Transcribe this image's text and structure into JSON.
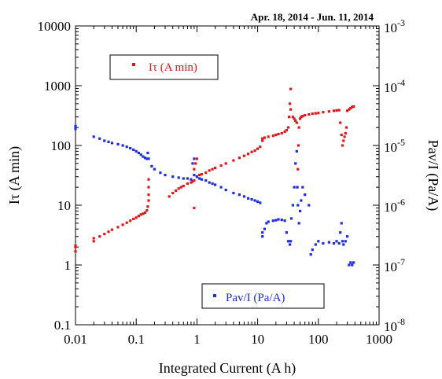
{
  "chart_data": {
    "type": "scatter",
    "title": "Apr. 18, 2014 - Jun. 11, 2014",
    "xlabel": "Integrated Current (A h)",
    "ylabel_left": "Iτ (A min)",
    "ylabel_right": "Pav/I (Pa/A)",
    "x_scale": "log",
    "y_left_scale": "log",
    "y_right_scale": "log",
    "xlim": [
      0.01,
      1000
    ],
    "ylim_left": [
      0.1,
      10000
    ],
    "ylim_right": [
      1e-08,
      0.001
    ],
    "x_ticks": [
      {
        "value": 0.01,
        "label": "0.01"
      },
      {
        "value": 0.1,
        "label": "0.1"
      },
      {
        "value": 1,
        "label": "1"
      },
      {
        "value": 10,
        "label": "10"
      },
      {
        "value": 100,
        "label": "100"
      },
      {
        "value": 1000,
        "label": "1000"
      }
    ],
    "y_left_ticks": [
      {
        "value": 0.1,
        "label": "0.1"
      },
      {
        "value": 1,
        "label": "1"
      },
      {
        "value": 10,
        "label": "10"
      },
      {
        "value": 100,
        "label": "100"
      },
      {
        "value": 1000,
        "label": "1000"
      },
      {
        "value": 10000,
        "label": "10000"
      }
    ],
    "y_right_ticks": [
      {
        "value": 1e-08,
        "base": "10",
        "exp": "-8"
      },
      {
        "value": 1e-07,
        "base": "10",
        "exp": "-7"
      },
      {
        "value": 1e-06,
        "base": "10",
        "exp": "-6"
      },
      {
        "value": 1e-05,
        "base": "10",
        "exp": "-5"
      },
      {
        "value": 0.0001,
        "base": "10",
        "exp": "-4"
      },
      {
        "value": 0.001,
        "base": "10",
        "exp": "-3"
      }
    ],
    "legend": [
      {
        "label": "Iτ (A min)",
        "color": "#e8141c",
        "placement": "upper-left"
      },
      {
        "label": "Pav/I (Pa/A)",
        "color": "#1c2ce8",
        "placement": "lower-middle"
      }
    ],
    "series": [
      {
        "name": "Iτ (A min)",
        "axis": "left",
        "color": "#e8141c",
        "points": [
          [
            0.01,
            1.7
          ],
          [
            0.01,
            2.0
          ],
          [
            0.01,
            2.1
          ],
          [
            0.02,
            2.5
          ],
          [
            0.02,
            2.8
          ],
          [
            0.025,
            3.0
          ],
          [
            0.03,
            3.3
          ],
          [
            0.035,
            3.6
          ],
          [
            0.04,
            3.9
          ],
          [
            0.05,
            4.3
          ],
          [
            0.06,
            4.7
          ],
          [
            0.07,
            5.1
          ],
          [
            0.08,
            5.5
          ],
          [
            0.09,
            5.9
          ],
          [
            0.1,
            6.2
          ],
          [
            0.11,
            6.6
          ],
          [
            0.12,
            7.0
          ],
          [
            0.13,
            7.2
          ],
          [
            0.14,
            7.5
          ],
          [
            0.15,
            8.2
          ],
          [
            0.155,
            9.5
          ],
          [
            0.16,
            12
          ],
          [
            0.16,
            15
          ],
          [
            0.16,
            20
          ],
          [
            0.16,
            27
          ],
          [
            0.35,
            14
          ],
          [
            0.4,
            16
          ],
          [
            0.45,
            17.5
          ],
          [
            0.5,
            19
          ],
          [
            0.55,
            20
          ],
          [
            0.6,
            21
          ],
          [
            0.7,
            23
          ],
          [
            0.8,
            24
          ],
          [
            0.85,
            25
          ],
          [
            0.9,
            26
          ],
          [
            0.9,
            9
          ],
          [
            0.9,
            40
          ],
          [
            0.95,
            50
          ],
          [
            1.0,
            30
          ],
          [
            1.0,
            60
          ],
          [
            1.1,
            32
          ],
          [
            1.2,
            33
          ],
          [
            1.4,
            35
          ],
          [
            1.6,
            38
          ],
          [
            1.8,
            40
          ],
          [
            2.0,
            42
          ],
          [
            2.5,
            46
          ],
          [
            3.0,
            50
          ],
          [
            4.0,
            56
          ],
          [
            5.0,
            62
          ],
          [
            6.0,
            67
          ],
          [
            7.0,
            72
          ],
          [
            8.0,
            78
          ],
          [
            9.0,
            82
          ],
          [
            10.0,
            88
          ],
          [
            11.0,
            95
          ],
          [
            12,
            120
          ],
          [
            12,
            130
          ],
          [
            13,
            135
          ],
          [
            15,
            140
          ],
          [
            18,
            145
          ],
          [
            20,
            150
          ],
          [
            22,
            155
          ],
          [
            25,
            160
          ],
          [
            28,
            170
          ],
          [
            30,
            180
          ],
          [
            32,
            200
          ],
          [
            33,
            300
          ],
          [
            34,
            500
          ],
          [
            35,
            880
          ],
          [
            35,
            400
          ],
          [
            38,
            300
          ],
          [
            40,
            280
          ],
          [
            42,
            260
          ],
          [
            44,
            240
          ],
          [
            45,
            20
          ],
          [
            46,
            40
          ],
          [
            47,
            100
          ],
          [
            48,
            200
          ],
          [
            50,
            280
          ],
          [
            52,
            300
          ],
          [
            55,
            310
          ],
          [
            60,
            320
          ],
          [
            70,
            330
          ],
          [
            80,
            340
          ],
          [
            90,
            345
          ],
          [
            100,
            350
          ],
          [
            120,
            360
          ],
          [
            150,
            370
          ],
          [
            180,
            380
          ],
          [
            200,
            385
          ],
          [
            220,
            390
          ],
          [
            230,
            240
          ],
          [
            240,
            150
          ],
          [
            250,
            100
          ],
          [
            260,
            120
          ],
          [
            270,
            140
          ],
          [
            280,
            160
          ],
          [
            290,
            200
          ],
          [
            300,
            380
          ],
          [
            320,
            400
          ],
          [
            340,
            420
          ],
          [
            360,
            440
          ],
          [
            380,
            450
          ]
        ]
      },
      {
        "name": "Pav/I (Pa/A)",
        "axis": "right",
        "color": "#1c2ce8",
        "points": [
          [
            0.01,
            1.9e-05
          ],
          [
            0.01,
            2.1e-05
          ],
          [
            0.02,
            1.4e-05
          ],
          [
            0.025,
            1.3e-05
          ],
          [
            0.03,
            1.2e-05
          ],
          [
            0.035,
            1.15e-05
          ],
          [
            0.04,
            1.1e-05
          ],
          [
            0.05,
            1.05e-05
          ],
          [
            0.06,
            1e-05
          ],
          [
            0.07,
            9.5e-06
          ],
          [
            0.08,
            9e-06
          ],
          [
            0.09,
            8.5e-06
          ],
          [
            0.1,
            8e-06
          ],
          [
            0.11,
            7.5e-06
          ],
          [
            0.12,
            7e-06
          ],
          [
            0.13,
            6.5e-06
          ],
          [
            0.14,
            6.2e-06
          ],
          [
            0.15,
            6e-06
          ],
          [
            0.155,
            7.5e-06
          ],
          [
            0.16,
            6e-06
          ],
          [
            0.18,
            4.5e-06
          ],
          [
            0.2,
            4e-06
          ],
          [
            0.25,
            3.5e-06
          ],
          [
            0.3,
            3.2e-06
          ],
          [
            0.4,
            3e-06
          ],
          [
            0.5,
            2.9e-06
          ],
          [
            0.6,
            2.8e-06
          ],
          [
            0.7,
            2.8e-06
          ],
          [
            0.8,
            2.7e-06
          ],
          [
            0.85,
            5e-06
          ],
          [
            0.9,
            3.2e-06
          ],
          [
            0.9,
            6e-06
          ],
          [
            1.0,
            3e-06
          ],
          [
            1.1,
            2.8e-06
          ],
          [
            1.2,
            2.7e-06
          ],
          [
            1.4,
            2.6e-06
          ],
          [
            1.6,
            2.4e-06
          ],
          [
            1.8,
            2.3e-06
          ],
          [
            2.0,
            2.2e-06
          ],
          [
            2.5,
            2e-06
          ],
          [
            3.0,
            1.8e-06
          ],
          [
            4.0,
            1.6e-06
          ],
          [
            5.0,
            1.5e-06
          ],
          [
            6.0,
            1.4e-06
          ],
          [
            7.0,
            1.3e-06
          ],
          [
            8.0,
            1.25e-06
          ],
          [
            9.0,
            1.2e-06
          ],
          [
            10,
            1.15e-06
          ],
          [
            11,
            1.1e-06
          ],
          [
            12,
            3.5e-07
          ],
          [
            12,
            3e-07
          ],
          [
            13,
            4e-07
          ],
          [
            14,
            5e-07
          ],
          [
            15,
            5.3e-07
          ],
          [
            18,
            5.5e-07
          ],
          [
            20,
            5.6e-07
          ],
          [
            22,
            5.8e-07
          ],
          [
            25,
            5.7e-07
          ],
          [
            28,
            5.5e-07
          ],
          [
            30,
            3.5e-07
          ],
          [
            32,
            2.5e-07
          ],
          [
            34,
            2.2e-07
          ],
          [
            35,
            2.5e-07
          ],
          [
            36,
            6e-07
          ],
          [
            38,
            1e-06
          ],
          [
            40,
            2e-06
          ],
          [
            42,
            5e-06
          ],
          [
            44,
            8e-06
          ],
          [
            45,
            2e-06
          ],
          [
            46,
            1e-06
          ],
          [
            48,
            5e-07
          ],
          [
            50,
            8e-07
          ],
          [
            52,
            1.2e-06
          ],
          [
            55,
            2e-06
          ],
          [
            60,
            1.5e-06
          ],
          [
            70,
            1e-06
          ],
          [
            75,
            1.5e-07
          ],
          [
            80,
            1.8e-07
          ],
          [
            90,
            2.2e-07
          ],
          [
            100,
            2.5e-07
          ],
          [
            120,
            2.3e-07
          ],
          [
            150,
            2.4e-07
          ],
          [
            180,
            2.3e-07
          ],
          [
            200,
            2.5e-07
          ],
          [
            220,
            2.3e-07
          ],
          [
            230,
            3.5e-07
          ],
          [
            240,
            5e-07
          ],
          [
            250,
            2.5e-07
          ],
          [
            260,
            2.2e-07
          ],
          [
            280,
            2.5e-07
          ],
          [
            300,
            3e-07
          ],
          [
            320,
            1e-07
          ],
          [
            340,
            1.1e-07
          ],
          [
            360,
            1e-07
          ],
          [
            380,
            1.1e-07
          ]
        ]
      }
    ]
  }
}
